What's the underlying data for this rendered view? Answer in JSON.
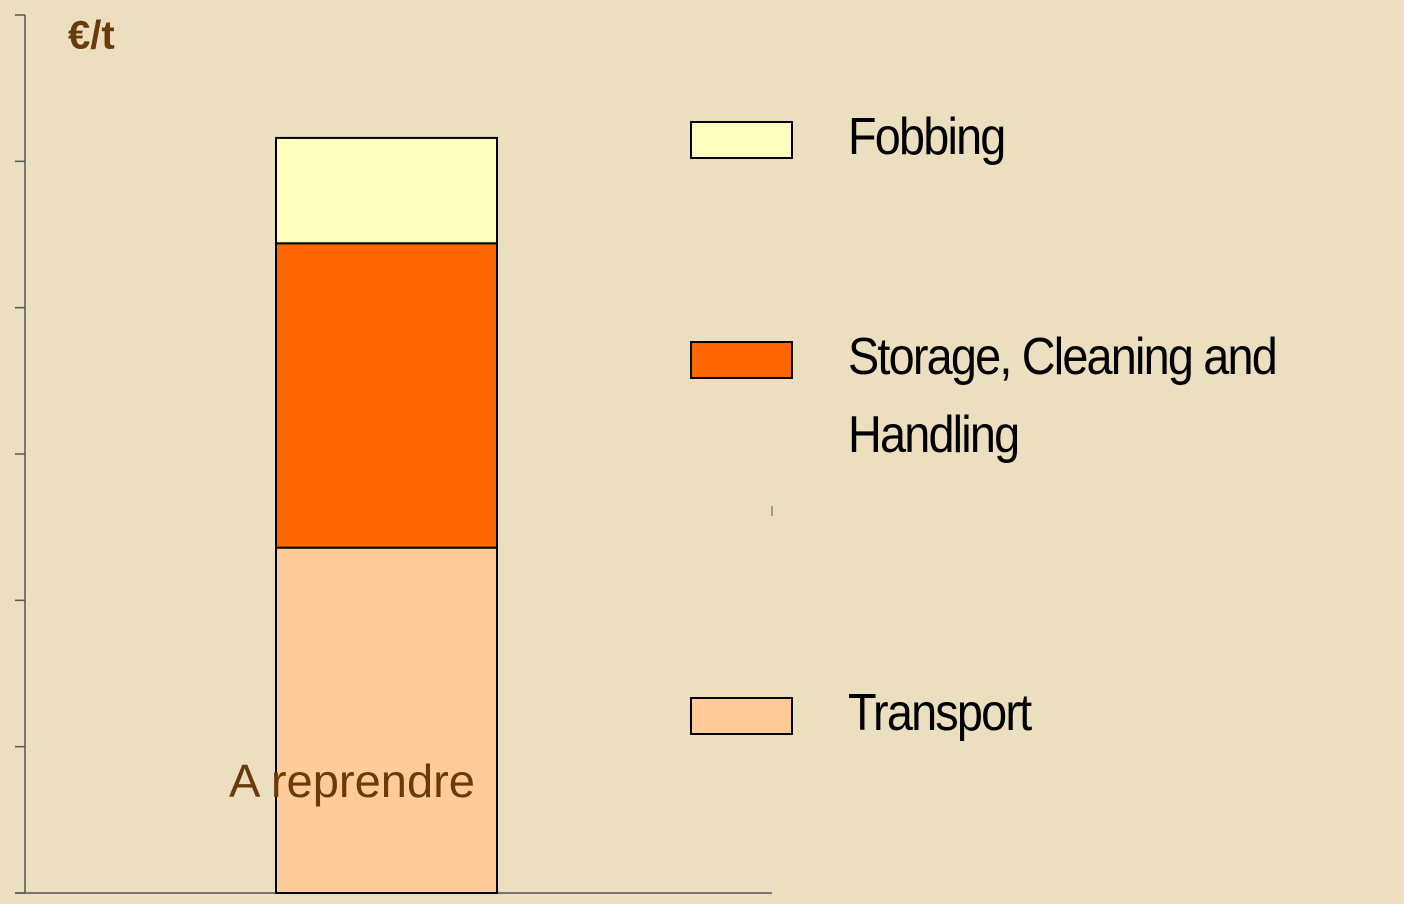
{
  "chart_data": {
    "type": "stacked_bar",
    "y_label": "€/t",
    "annotation": "A reprendre",
    "categories": [
      null
    ],
    "series": [
      {
        "name": "Transport",
        "color": "#ffcc99",
        "values": [
          2.36
        ]
      },
      {
        "name": "Storage, Cleaning and Handling",
        "color": "#ff6600",
        "values": [
          2.08
        ]
      },
      {
        "name": "Fobbing",
        "color": "#ffffc0",
        "values": [
          0.72
        ]
      }
    ],
    "ylim": [
      0,
      6
    ],
    "yticks": [
      0,
      1,
      2,
      3,
      4,
      5,
      6
    ],
    "grid": false
  }
}
